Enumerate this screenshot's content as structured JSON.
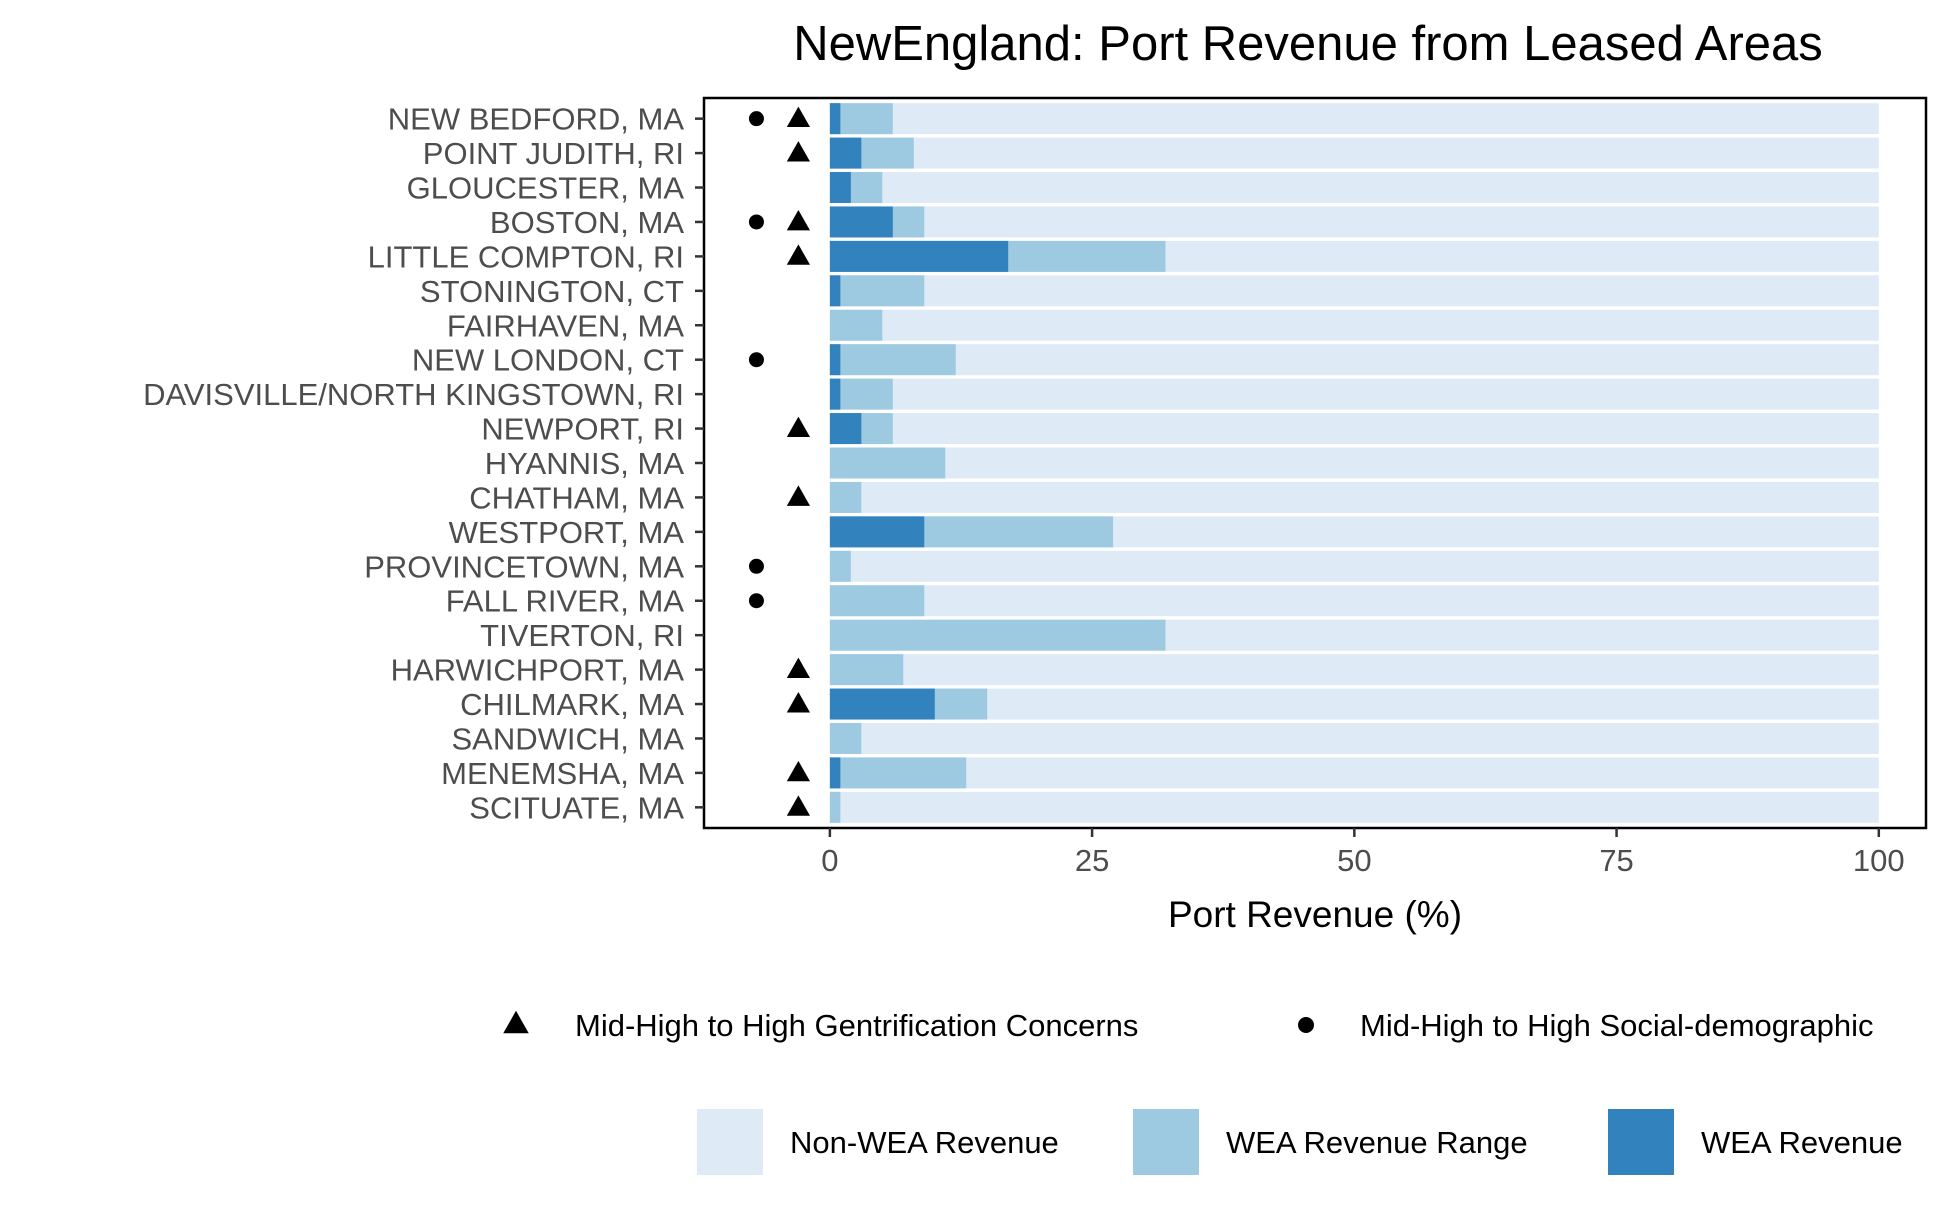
{
  "chart_data": {
    "type": "bar",
    "title": "NewEngland: Port Revenue from Leased Areas",
    "xlabel": "Port Revenue (%)",
    "xlim": [
      -12,
      104.5
    ],
    "x_ticks": [
      0,
      25,
      50,
      75,
      100
    ],
    "grid": false,
    "legend_position": "bottom",
    "categories": [
      "NEW BEDFORD, MA",
      "POINT JUDITH, RI",
      "GLOUCESTER, MA",
      "BOSTON, MA",
      "LITTLE COMPTON, RI",
      "STONINGTON, CT",
      "FAIRHAVEN, MA",
      "NEW LONDON, CT",
      "DAVISVILLE/NORTH KINGSTOWN, RI",
      "NEWPORT, RI",
      "HYANNIS, MA",
      "CHATHAM, MA",
      "WESTPORT, MA",
      "PROVINCETOWN, MA",
      "FALL RIVER, MA",
      "TIVERTON, RI",
      "HARWICHPORT, MA",
      "CHILMARK, MA",
      "SANDWICH, MA",
      "MENEMSHA, MA",
      "SCITUATE, MA"
    ],
    "series": [
      {
        "name": "Non-WEA Revenue",
        "color": "#deebf7",
        "values": [
          100,
          100,
          100,
          100,
          100,
          100,
          100,
          100,
          100,
          100,
          100,
          100,
          100,
          100,
          100,
          100,
          100,
          100,
          100,
          100,
          100
        ]
      },
      {
        "name": "WEA Revenue Range",
        "color": "#9ecae1",
        "values": [
          6,
          8,
          5,
          9,
          32,
          9,
          5,
          12,
          6,
          6,
          11,
          3,
          27,
          2,
          9,
          32,
          7,
          15,
          3,
          13,
          1
        ]
      },
      {
        "name": "WEA Revenue",
        "color": "#3182bd",
        "values": [
          1,
          3,
          2,
          6,
          17,
          1,
          0,
          1,
          1,
          3,
          0,
          0,
          9,
          0,
          0,
          0,
          0,
          10,
          0,
          1,
          0
        ]
      }
    ],
    "markers": {
      "gentrification": {
        "label": "Mid-High to High Gentrification Concerns",
        "symbol": "triangle",
        "x": -3,
        "ports": [
          "NEW BEDFORD, MA",
          "POINT JUDITH, RI",
          "BOSTON, MA",
          "LITTLE COMPTON, RI",
          "NEWPORT, RI",
          "CHATHAM, MA",
          "HARWICHPORT, MA",
          "CHILMARK, MA",
          "MENEMSHA, MA",
          "SCITUATE, MA"
        ]
      },
      "social_demographic": {
        "label": "Mid-High to High Social-demographic",
        "symbol": "circle",
        "x": -7,
        "ports": [
          "NEW BEDFORD, MA",
          "BOSTON, MA",
          "NEW LONDON, CT",
          "PROVINCETOWN, MA",
          "FALL RIVER, MA"
        ]
      }
    }
  }
}
